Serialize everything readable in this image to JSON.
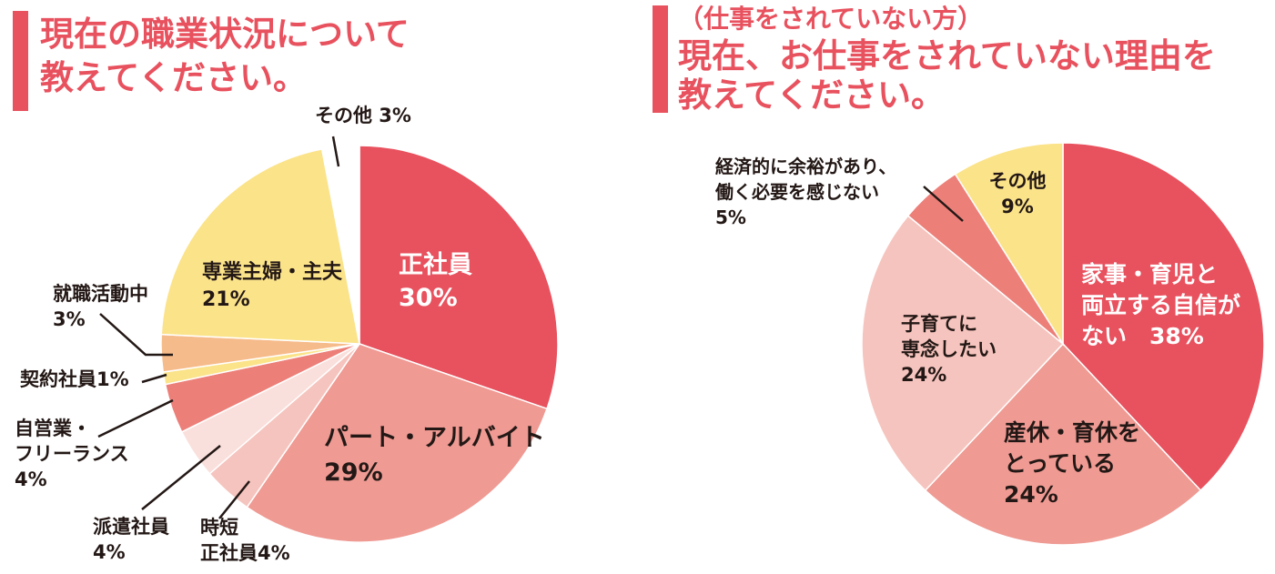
{
  "left": {
    "title_lines": [
      "現在の職業状況について",
      "教えてください。"
    ]
  },
  "right": {
    "pretitle": "（仕事をされていない方）",
    "title_lines": [
      "現在、お仕事をされていない理由を",
      "教えてください。"
    ]
  },
  "chart_data": [
    {
      "type": "pie",
      "title": "現在の職業状況について教えてください。",
      "slices": [
        {
          "label": "正社員",
          "value": 30,
          "value_text": "30%",
          "color": "#e8515e"
        },
        {
          "label": "パート・アルバイト",
          "value": 29,
          "value_text": "29%",
          "color": "#ef9a93"
        },
        {
          "label": "時短正社員",
          "value": 4,
          "value_text": "4%",
          "color": "#f6c4be"
        },
        {
          "label": "派遣社員",
          "value": 4,
          "value_text": "4%",
          "color": "#fae0dc"
        },
        {
          "label": "自営業・フリーランス",
          "value": 4,
          "value_text": "4%",
          "color": "#ed7f79"
        },
        {
          "label": "契約社員",
          "value": 1,
          "value_text": "1%",
          "color": "#fbe38a"
        },
        {
          "label": "就職活動中",
          "value": 3,
          "value_text": "3%",
          "color": "#f6bb8a"
        },
        {
          "label": "専業主婦・主夫",
          "value": 21,
          "value_text": "21%",
          "color": "#fbe38a"
        },
        {
          "label": "その他",
          "value": 3,
          "value_text": "3%",
          "color": "#ffffff"
        }
      ],
      "labels": {
        "seishain": [
          "正社員",
          "30%"
        ],
        "part": [
          "パート・アルバイト",
          "29%"
        ],
        "jitan": [
          "時短",
          "正社員4%"
        ],
        "haken": [
          "派遣社員",
          "4%"
        ],
        "jiei": [
          "自営業・",
          "フリーランス",
          "4%"
        ],
        "keiyaku": [
          "契約社員1%"
        ],
        "shushoku": [
          "就職活動中",
          "3%"
        ],
        "sengyo": [
          "専業主婦・主夫",
          "21%"
        ],
        "sonota": [
          "その他 3%"
        ]
      }
    },
    {
      "type": "pie",
      "title": "現在、お仕事をされていない理由を教えてください。",
      "slices": [
        {
          "label": "家事・育児と両立する自信がない",
          "value": 38,
          "value_text": "38%",
          "color": "#e8515e"
        },
        {
          "label": "産休・育休をとっている",
          "value": 24,
          "value_text": "24%",
          "color": "#ef9a93"
        },
        {
          "label": "子育てに専念したい",
          "value": 24,
          "value_text": "24%",
          "color": "#f6c4be"
        },
        {
          "label": "経済的に余裕があり、働く必要を感じない",
          "value": 5,
          "value_text": "5%",
          "color": "#ed7f79"
        },
        {
          "label": "その他",
          "value": 9,
          "value_text": "9%",
          "color": "#fbe38a"
        }
      ],
      "labels": {
        "kaji": [
          "家事・育児と",
          "両立する自信が",
          "ない　38%"
        ],
        "sankyu": [
          "産休・育休を",
          "とっている",
          "24%"
        ],
        "kosodate": [
          "子育てに",
          "専念したい",
          "24%"
        ],
        "keizai": [
          "経済的に余裕があり、",
          "働く必要を感じない",
          "5%"
        ],
        "sonota": [
          "その他",
          "9%"
        ]
      }
    }
  ]
}
